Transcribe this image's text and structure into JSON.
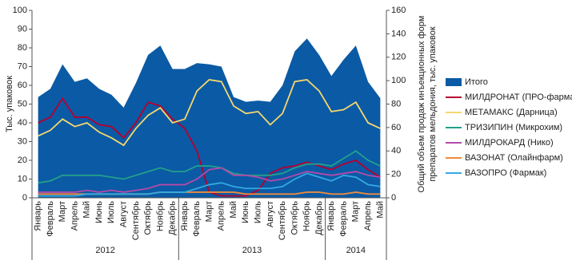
{
  "chart_data": {
    "type": "combo",
    "categories": [
      "Январь",
      "Февраль",
      "Март",
      "Апрель",
      "Май",
      "Июнь",
      "Июль",
      "Август",
      "Сентябрь",
      "Октябрь",
      "Ноябрь",
      "Декабрь",
      "Январь",
      "Февраль",
      "Март",
      "Апрель",
      "Май",
      "Июнь",
      "Июль",
      "Август",
      "Сентябрь",
      "Октябрь",
      "Ноябрь",
      "Декабрь",
      "Январь",
      "Февраль",
      "Март",
      "Апрель",
      "Май"
    ],
    "year_groups": [
      {
        "label": "2012",
        "count": 12
      },
      {
        "label": "2013",
        "count": 12
      },
      {
        "label": "2014",
        "count": 5
      }
    ],
    "ylabel": "Тыс. упаковок",
    "y2label": [
      "Общий объем продаж инъекционных форм",
      "препаратов мельдония, тыс. упаковок"
    ],
    "ylim": [
      0,
      100
    ],
    "yticks": [
      0,
      10,
      20,
      30,
      40,
      50,
      60,
      70,
      80,
      90,
      100
    ],
    "y2lim": [
      0,
      160
    ],
    "y2ticks": [
      0,
      20,
      40,
      60,
      80,
      100,
      120,
      140,
      160
    ],
    "series": [
      {
        "name": "Итого",
        "type": "area",
        "axis": "y2",
        "color": "#0b5aa5",
        "values": [
          86,
          93,
          114,
          99,
          102,
          93,
          88,
          77,
          98,
          122,
          130,
          110,
          110,
          115,
          114,
          112,
          86,
          82,
          83,
          82,
          96,
          125,
          136,
          122,
          104,
          118,
          130,
          99,
          85
        ]
      },
      {
        "name": "МИЛДРОНАТ (ПРО-фарма)",
        "type": "line",
        "color": "#b5002e",
        "values": [
          40,
          43,
          53,
          43,
          43,
          39,
          38,
          32,
          40,
          51,
          49,
          42,
          37,
          25,
          3,
          1,
          1,
          1,
          4,
          13,
          16,
          17,
          19,
          17,
          15,
          18,
          20,
          15,
          11
        ]
      },
      {
        "name": "МЕТАМАКС (Дарница)",
        "type": "line",
        "color": "#f5d76e",
        "values": [
          33,
          36,
          42,
          38,
          40,
          35,
          32,
          28,
          37,
          44,
          48,
          40,
          42,
          57,
          63,
          62,
          49,
          45,
          46,
          39,
          45,
          62,
          63,
          57,
          46,
          47,
          51,
          40,
          37
        ]
      },
      {
        "name": "ТРИЗИПИН (Микрохим)",
        "type": "line",
        "color": "#22a08a",
        "values": [
          8,
          9,
          12,
          12,
          12,
          12,
          11,
          10,
          12,
          14,
          16,
          14,
          14,
          17,
          17,
          16,
          13,
          12,
          12,
          12,
          13,
          16,
          18,
          18,
          17,
          21,
          25,
          20,
          17
        ]
      },
      {
        "name": "МИЛДРОКАРД (Нико)",
        "type": "line",
        "color": "#b44aa8",
        "values": [
          3,
          3,
          3,
          3,
          4,
          3,
          4,
          3,
          4,
          5,
          7,
          7,
          7,
          10,
          15,
          16,
          12,
          12,
          11,
          9,
          10,
          12,
          14,
          13,
          12,
          13,
          14,
          12,
          11
        ]
      },
      {
        "name": "ВАЗОНАТ (Олайнфарм)",
        "type": "line",
        "color": "#f08a3a",
        "values": [
          2,
          2,
          2,
          2,
          2,
          2,
          2,
          2,
          2,
          2,
          3,
          3,
          3,
          3,
          3,
          3,
          3,
          2,
          2,
          2,
          2,
          2,
          3,
          3,
          2,
          2,
          3,
          2,
          2
        ]
      },
      {
        "name": "ВАЗОПРО (Фармак)",
        "type": "line",
        "color": "#33a9e0",
        "values": [
          1,
          1,
          1,
          1,
          2,
          2,
          2,
          2,
          2,
          2,
          3,
          3,
          3,
          5,
          7,
          8,
          6,
          5,
          5,
          5,
          6,
          10,
          13,
          11,
          9,
          12,
          11,
          7,
          6
        ]
      }
    ]
  }
}
